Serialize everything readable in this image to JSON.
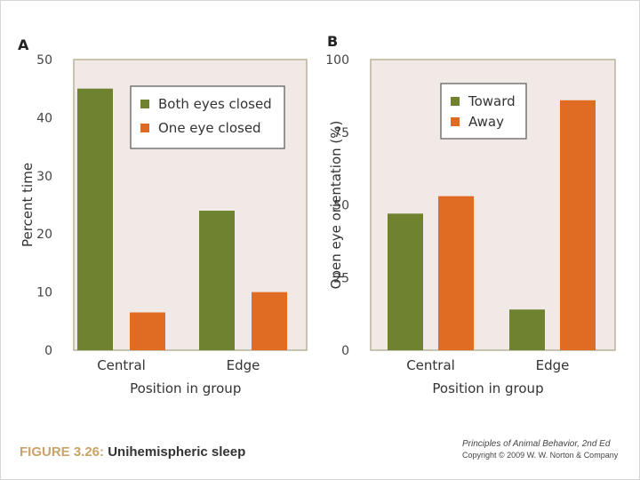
{
  "colors": {
    "green": "#6e8230",
    "orange": "#e06b22",
    "plot_bg": "#f0e9e6",
    "frame": "#b9b39c"
  },
  "chart_data": [
    {
      "type": "bar",
      "panel_label": "A",
      "categories": [
        "Central",
        "Edge"
      ],
      "series": [
        {
          "name": "Both eyes closed",
          "values": [
            45,
            24
          ]
        },
        {
          "name": "One eye closed",
          "values": [
            6.5,
            10
          ]
        }
      ],
      "xlabel": "Position in group",
      "ylabel": "Percent time",
      "ylim": [
        0,
        50
      ],
      "yticks": [
        "0",
        "10",
        "20",
        "30",
        "40",
        "50"
      ],
      "legend_position": "top-right",
      "grid": false
    },
    {
      "type": "bar",
      "panel_label": "B",
      "categories": [
        "Central",
        "Edge"
      ],
      "series": [
        {
          "name": "Toward",
          "values": [
            47,
            14
          ]
        },
        {
          "name": "Away",
          "values": [
            53,
            86
          ]
        }
      ],
      "xlabel": "Position in group",
      "ylabel": "Open eye orientation (%)",
      "ylim": [
        0,
        100
      ],
      "yticks": [
        "0",
        "25",
        "50",
        "75",
        "100"
      ],
      "legend_position": "top-right",
      "grid": false
    }
  ],
  "caption": {
    "figure_label": "FIGURE 3.26:",
    "figure_title": "Unihemispheric sleep"
  },
  "credit": {
    "book": "Principles of Animal Behavior, 2nd Ed",
    "copyright": "Copyright © 2009 W. W. Norton & Company"
  }
}
